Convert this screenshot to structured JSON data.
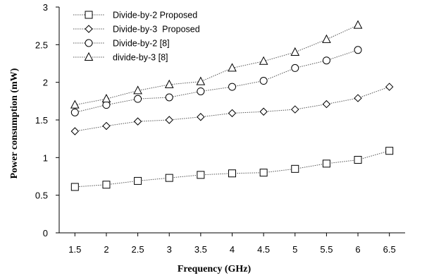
{
  "chart_data": {
    "type": "line",
    "xlabel": "Frequency (GHz)",
    "ylabel": "Power consumption (mW)",
    "xlim": [
      1.25,
      6.75
    ],
    "ylim": [
      0,
      3
    ],
    "x_ticks": [
      "1.5",
      "2",
      "2.5",
      "3",
      "3.5",
      "4",
      "4.5",
      "5",
      "5.5",
      "6",
      "6.5"
    ],
    "y_ticks": [
      "0",
      "0.5",
      "1",
      "1.5",
      "2",
      "2.5",
      "3"
    ],
    "grid": false,
    "legend_position": "top-left",
    "series": [
      {
        "name": "Divide-by-2 Proposed",
        "marker": "square",
        "line_style": "dotted",
        "x": [
          1.5,
          2,
          2.5,
          3,
          3.5,
          4,
          4.5,
          5,
          5.5,
          6,
          6.5
        ],
        "values": [
          0.61,
          0.64,
          0.69,
          0.73,
          0.77,
          0.79,
          0.8,
          0.85,
          0.92,
          0.97,
          1.09
        ]
      },
      {
        "name": "Divide-by-3  Proposed",
        "marker": "diamond",
        "line_style": "dotted",
        "x": [
          1.5,
          2,
          2.5,
          3,
          3.5,
          4,
          4.5,
          5,
          5.5,
          6,
          6.5
        ],
        "values": [
          1.35,
          1.42,
          1.48,
          1.5,
          1.54,
          1.59,
          1.61,
          1.64,
          1.71,
          1.79,
          1.94
        ]
      },
      {
        "name": "Divide-by-2 [8]",
        "marker": "circle",
        "line_style": "dotted",
        "x": [
          1.5,
          2,
          2.5,
          3,
          3.5,
          4,
          4.5,
          5,
          5.5,
          6
        ],
        "values": [
          1.6,
          1.7,
          1.78,
          1.8,
          1.88,
          1.94,
          2.02,
          2.19,
          2.29,
          2.43
        ]
      },
      {
        "name": "divide-by-3 [8]",
        "marker": "triangle",
        "line_style": "dotted",
        "x": [
          1.5,
          2,
          2.5,
          3,
          3.5,
          4,
          4.5,
          5,
          5.5,
          6
        ],
        "values": [
          1.7,
          1.78,
          1.89,
          1.97,
          2.01,
          2.19,
          2.28,
          2.4,
          2.57,
          2.76
        ]
      }
    ]
  }
}
